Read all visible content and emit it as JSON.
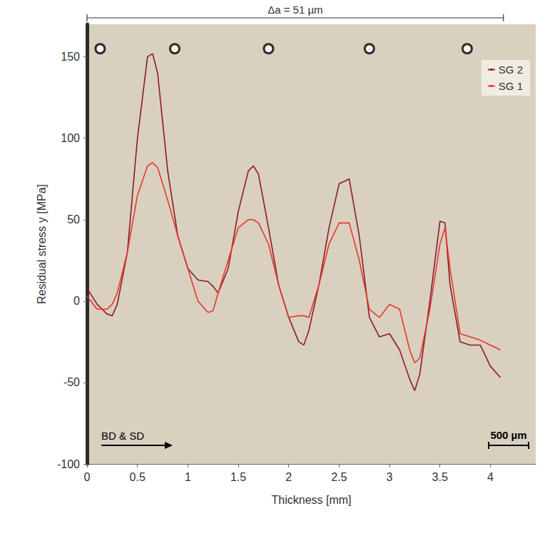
{
  "chart_data": {
    "type": "line",
    "x_label": "Thickness [mm]",
    "y_label": "Residual stress y [MPa]",
    "x": [
      0,
      0.1,
      0.2,
      0.25,
      0.3,
      0.4,
      0.5,
      0.6,
      0.65,
      0.7,
      0.8,
      0.9,
      1.0,
      1.1,
      1.2,
      1.25,
      1.3,
      1.4,
      1.5,
      1.6,
      1.65,
      1.7,
      1.8,
      1.9,
      2.0,
      2.1,
      2.15,
      2.2,
      2.3,
      2.4,
      2.5,
      2.6,
      2.7,
      2.8,
      2.9,
      3.0,
      3.1,
      3.2,
      3.25,
      3.3,
      3.4,
      3.5,
      3.55,
      3.6,
      3.7,
      3.8,
      3.9,
      4.0,
      4.1
    ],
    "series": [
      {
        "name": "SG 2",
        "color": "#8b1a2e",
        "values": [
          8,
          -2,
          -8,
          -9,
          -2,
          30,
          100,
          150,
          152,
          140,
          80,
          40,
          20,
          13,
          12,
          9,
          5,
          20,
          55,
          80,
          83,
          78,
          45,
          10,
          -10,
          -25,
          -27,
          -18,
          10,
          45,
          72,
          75,
          40,
          -10,
          -22,
          -20,
          -30,
          -48,
          -55,
          -45,
          0,
          49,
          48,
          10,
          -25,
          -27,
          -27,
          -40,
          -47
        ]
      },
      {
        "name": "SG 1",
        "color": "#e8372c",
        "values": [
          3,
          -5,
          -5,
          -2,
          5,
          30,
          65,
          83,
          85,
          82,
          62,
          40,
          20,
          0,
          -7,
          -6,
          5,
          25,
          45,
          50,
          50,
          48,
          35,
          10,
          -10,
          -9,
          -9,
          -10,
          10,
          35,
          48,
          48,
          25,
          -5,
          -10,
          -2,
          -5,
          -30,
          -38,
          -35,
          -5,
          35,
          45,
          20,
          -20,
          -22,
          -24,
          -27,
          -30
        ]
      }
    ],
    "xlim": [
      0,
      4.45
    ],
    "xticks": [
      0,
      0.5,
      1,
      1.5,
      2,
      2.5,
      3,
      3.5,
      4
    ],
    "ylim": [
      -100,
      170
    ],
    "yticks": [
      -100,
      -50,
      0,
      50,
      100,
      150
    ],
    "grid": false,
    "legend": "upper right",
    "bracket": {
      "label": "Δa = 51 µm",
      "span": [
        0,
        4.13
      ]
    },
    "circles": {
      "x": [
        0.13,
        0.87,
        1.8,
        2.8,
        3.77
      ],
      "y": 155
    },
    "arrow": {
      "label": "BD & SD"
    },
    "scale_bar": {
      "label": "500 µm"
    }
  }
}
